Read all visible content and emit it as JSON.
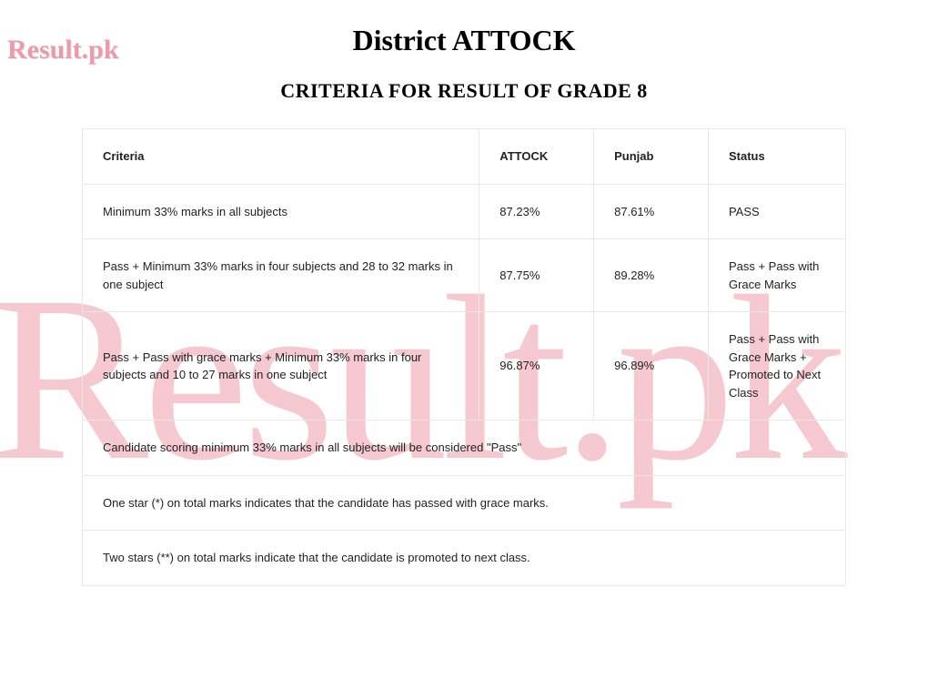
{
  "watermark": {
    "small": "Result.pk",
    "large": "Result.pk",
    "color_small": "#ec9bad",
    "color_large": "#f4b6bf"
  },
  "title": "District ATTOCK",
  "subtitle": "CRITERIA FOR RESULT OF GRADE 8",
  "table": {
    "type": "table",
    "border_color": "#e8e8e8",
    "text_color": "#222222",
    "header_fontsize": 13,
    "cell_fontsize": 13,
    "columns": [
      {
        "key": "criteria",
        "label": "Criteria",
        "width_pct": 52
      },
      {
        "key": "attock",
        "label": "ATTOCK",
        "width_pct": 15
      },
      {
        "key": "punjab",
        "label": "Punjab",
        "width_pct": 15
      },
      {
        "key": "status",
        "label": "Status",
        "width_pct": 18
      }
    ],
    "rows": [
      {
        "criteria": "Minimum 33% marks in all subjects",
        "attock": "87.23%",
        "punjab": "87.61%",
        "status": "PASS"
      },
      {
        "criteria": "Pass + Minimum 33% marks in four subjects and 28 to 32 marks in one subject",
        "attock": "87.75%",
        "punjab": "89.28%",
        "status": "Pass + Pass with Grace Marks"
      },
      {
        "criteria": "Pass + Pass with grace marks + Minimum 33% marks in four subjects and 10 to 27 marks in one subject",
        "attock": "96.87%",
        "punjab": "96.89%",
        "status": "Pass + Pass with Grace Marks + Promoted to Next Class"
      }
    ],
    "notes": [
      "Candidate scoring minimum 33% marks in all subjects will be considered \"Pass\"",
      "One star (*) on total marks indicates that the candidate has passed with grace marks.",
      "Two stars (**) on total marks indicate that the candidate is promoted to next class."
    ]
  }
}
